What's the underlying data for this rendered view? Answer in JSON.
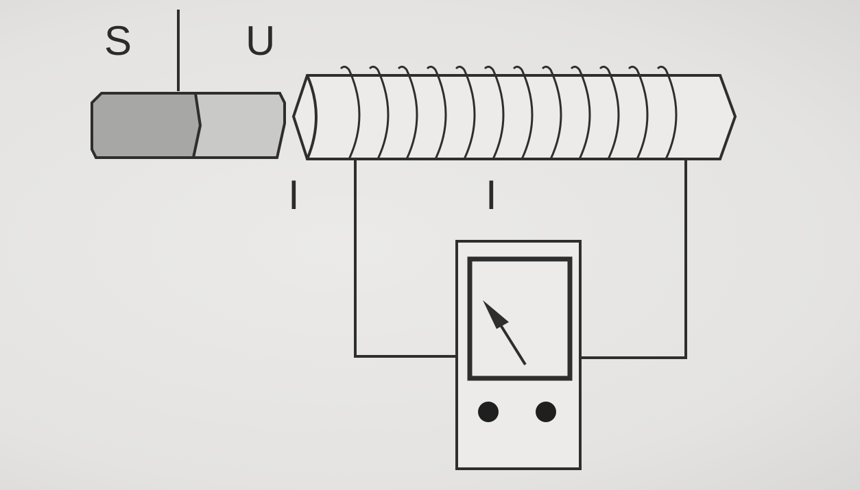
{
  "labels": {
    "magnet_pole_left": "S",
    "magnet_pole_right": "U",
    "coil_end_mark_left": "I",
    "coil_end_mark_right": "I"
  }
}
